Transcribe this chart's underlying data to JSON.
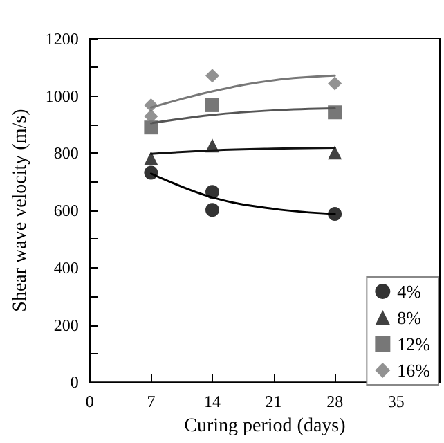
{
  "chart_data": {
    "type": "scatter",
    "xlabel": "Curing period (days)",
    "ylabel": "Shear wave velocity (m/s)",
    "xlim": [
      0,
      40
    ],
    "xticks": [
      0,
      7,
      14,
      21,
      28,
      35
    ],
    "ylim": [
      0,
      1200
    ],
    "yticks": [
      0,
      {
        "value": 100,
        "label": null
      },
      200,
      {
        "value": 300,
        "label": null
      },
      400,
      {
        "value": 500,
        "label": null
      },
      600,
      {
        "value": 700,
        "label": null
      },
      800,
      {
        "value": 900,
        "label": null
      },
      1000,
      {
        "value": 1100,
        "label": null
      },
      1200
    ],
    "grid": false,
    "legend": "bottom right",
    "series": [
      {
        "name": "4%",
        "color": "#000000",
        "marker": "circle",
        "x": [
          7,
          14,
          14,
          28
        ],
        "values": [
          732,
          665,
          602,
          588
        ]
      },
      {
        "name": "8%",
        "color": "#111111",
        "marker": "triangle",
        "x": [
          7,
          14,
          28
        ],
        "values": [
          783,
          827,
          803
        ]
      },
      {
        "name": "12%",
        "color": "#555555",
        "marker": "square",
        "x": [
          7,
          14,
          28
        ],
        "values": [
          890,
          968,
          943
        ]
      },
      {
        "name": "16%",
        "color": "#777777",
        "marker": "diamond",
        "x": [
          7,
          7,
          14,
          28
        ],
        "values": [
          968,
          929,
          1071,
          1044
        ]
      },
      {
        "type": "line",
        "color": "#000000",
        "marker": "none",
        "x": [
          7,
          14,
          21,
          28
        ],
        "values": [
          729,
          646,
          606,
          588
        ]
      },
      {
        "type": "line",
        "color": "#111111",
        "marker": "none",
        "x": [
          7,
          14,
          21,
          28
        ],
        "values": [
          798,
          810,
          816,
          819
        ]
      },
      {
        "type": "line",
        "color": "#555555",
        "marker": "none",
        "x": [
          7,
          14,
          21,
          28
        ],
        "values": [
          905,
          934,
          950,
          957
        ]
      },
      {
        "type": "line",
        "color": "#777777",
        "marker": "none",
        "x": [
          7,
          14,
          21,
          28
        ],
        "values": [
          960,
          1016,
          1055,
          1071
        ]
      }
    ]
  }
}
